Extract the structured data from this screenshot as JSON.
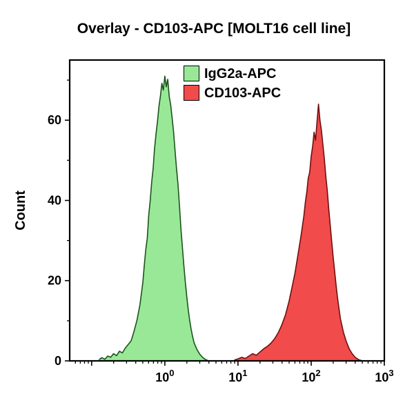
{
  "title": "Overlay - CD103-APC [MOLT16 cell line]",
  "chart_data": {
    "type": "area",
    "subtype": "flow-cytometry-histogram-overlay",
    "title": "Overlay - CD103-APC [MOLT16 cell line]",
    "xlabel": "",
    "ylabel": "Count",
    "x_scale": "log10",
    "xlim_log": [
      -1.3,
      3
    ],
    "ylim": [
      0,
      75
    ],
    "x_major_ticks_log": [
      -1,
      0,
      1,
      2,
      3
    ],
    "x_labeled_ticks": [
      0,
      1,
      2,
      3
    ],
    "x_tick_label_base": "10",
    "y_major_ticks": [
      0,
      20,
      40,
      60
    ],
    "y_minor_ticks": [
      10,
      30,
      50,
      70
    ],
    "grid": false,
    "legend_position": "top-center-inside",
    "frame_color": "#000000",
    "series": [
      {
        "name": "IgG2a-APC",
        "fill": "#98e898",
        "stroke": "#1a531a",
        "peak_log_x": 0.0,
        "peak_count": 71,
        "points": [
          [
            -0.9,
            0.3
          ],
          [
            -0.86,
            0.8
          ],
          [
            -0.82,
            0.4
          ],
          [
            -0.78,
            1.2
          ],
          [
            -0.74,
            0.9
          ],
          [
            -0.7,
            1.8
          ],
          [
            -0.66,
            1.3
          ],
          [
            -0.62,
            2.4
          ],
          [
            -0.58,
            2.0
          ],
          [
            -0.54,
            3.2
          ],
          [
            -0.5,
            4.1
          ],
          [
            -0.46,
            5.0
          ],
          [
            -0.42,
            7.4
          ],
          [
            -0.38,
            10.2
          ],
          [
            -0.34,
            14.0
          ],
          [
            -0.3,
            19.5
          ],
          [
            -0.28,
            24.0
          ],
          [
            -0.26,
            27.8
          ],
          [
            -0.24,
            30.5
          ],
          [
            -0.22,
            36.2
          ],
          [
            -0.2,
            40.0
          ],
          [
            -0.18,
            44.5
          ],
          [
            -0.16,
            47.9
          ],
          [
            -0.14,
            53.0
          ],
          [
            -0.12,
            56.5
          ],
          [
            -0.1,
            59.8
          ],
          [
            -0.08,
            63.5
          ],
          [
            -0.06,
            66.0
          ],
          [
            -0.04,
            69.2
          ],
          [
            -0.02,
            67.5
          ],
          [
            0.0,
            71.0
          ],
          [
            0.02,
            68.3
          ],
          [
            0.04,
            70.2
          ],
          [
            0.06,
            66.0
          ],
          [
            0.08,
            63.9
          ],
          [
            0.1,
            60.5
          ],
          [
            0.12,
            57.0
          ],
          [
            0.14,
            52.4
          ],
          [
            0.16,
            48.0
          ],
          [
            0.18,
            44.1
          ],
          [
            0.2,
            38.7
          ],
          [
            0.22,
            33.0
          ],
          [
            0.24,
            28.4
          ],
          [
            0.26,
            23.9
          ],
          [
            0.28,
            19.6
          ],
          [
            0.3,
            16.0
          ],
          [
            0.32,
            12.8
          ],
          [
            0.34,
            10.1
          ],
          [
            0.36,
            7.9
          ],
          [
            0.38,
            6.0
          ],
          [
            0.4,
            4.5
          ],
          [
            0.44,
            2.8
          ],
          [
            0.48,
            1.6
          ],
          [
            0.52,
            0.8
          ],
          [
            0.56,
            0.3
          ],
          [
            0.6,
            0.0
          ]
        ]
      },
      {
        "name": "CD103-APC",
        "fill": "#f14b4b",
        "stroke": "#6d0f0f",
        "peak_log_x": 2.1,
        "peak_count": 64,
        "points": [
          [
            0.95,
            0.2
          ],
          [
            1.0,
            0.5
          ],
          [
            1.05,
            0.9
          ],
          [
            1.1,
            0.6
          ],
          [
            1.15,
            1.2
          ],
          [
            1.2,
            1.8
          ],
          [
            1.25,
            1.4
          ],
          [
            1.3,
            2.2
          ],
          [
            1.35,
            3.0
          ],
          [
            1.4,
            3.6
          ],
          [
            1.45,
            4.4
          ],
          [
            1.5,
            5.5
          ],
          [
            1.55,
            7.0
          ],
          [
            1.6,
            9.0
          ],
          [
            1.65,
            11.5
          ],
          [
            1.7,
            15.0
          ],
          [
            1.74,
            18.5
          ],
          [
            1.78,
            22.0
          ],
          [
            1.82,
            26.5
          ],
          [
            1.86,
            31.0
          ],
          [
            1.9,
            36.0
          ],
          [
            1.92,
            39.5
          ],
          [
            1.94,
            42.0
          ],
          [
            1.96,
            45.5
          ],
          [
            1.98,
            47.0
          ],
          [
            2.0,
            51.0
          ],
          [
            2.02,
            53.5
          ],
          [
            2.04,
            57.0
          ],
          [
            2.06,
            55.0
          ],
          [
            2.08,
            59.5
          ],
          [
            2.1,
            64.0
          ],
          [
            2.12,
            60.0
          ],
          [
            2.14,
            57.5
          ],
          [
            2.16,
            54.0
          ],
          [
            2.18,
            50.5
          ],
          [
            2.2,
            46.0
          ],
          [
            2.22,
            42.5
          ],
          [
            2.24,
            38.0
          ],
          [
            2.26,
            34.0
          ],
          [
            2.28,
            30.0
          ],
          [
            2.3,
            26.0
          ],
          [
            2.32,
            22.5
          ],
          [
            2.34,
            19.0
          ],
          [
            2.36,
            15.8
          ],
          [
            2.38,
            13.0
          ],
          [
            2.4,
            10.5
          ],
          [
            2.44,
            7.2
          ],
          [
            2.48,
            4.8
          ],
          [
            2.52,
            3.0
          ],
          [
            2.56,
            1.8
          ],
          [
            2.6,
            0.9
          ],
          [
            2.65,
            0.3
          ],
          [
            2.7,
            0.0
          ]
        ]
      }
    ]
  }
}
